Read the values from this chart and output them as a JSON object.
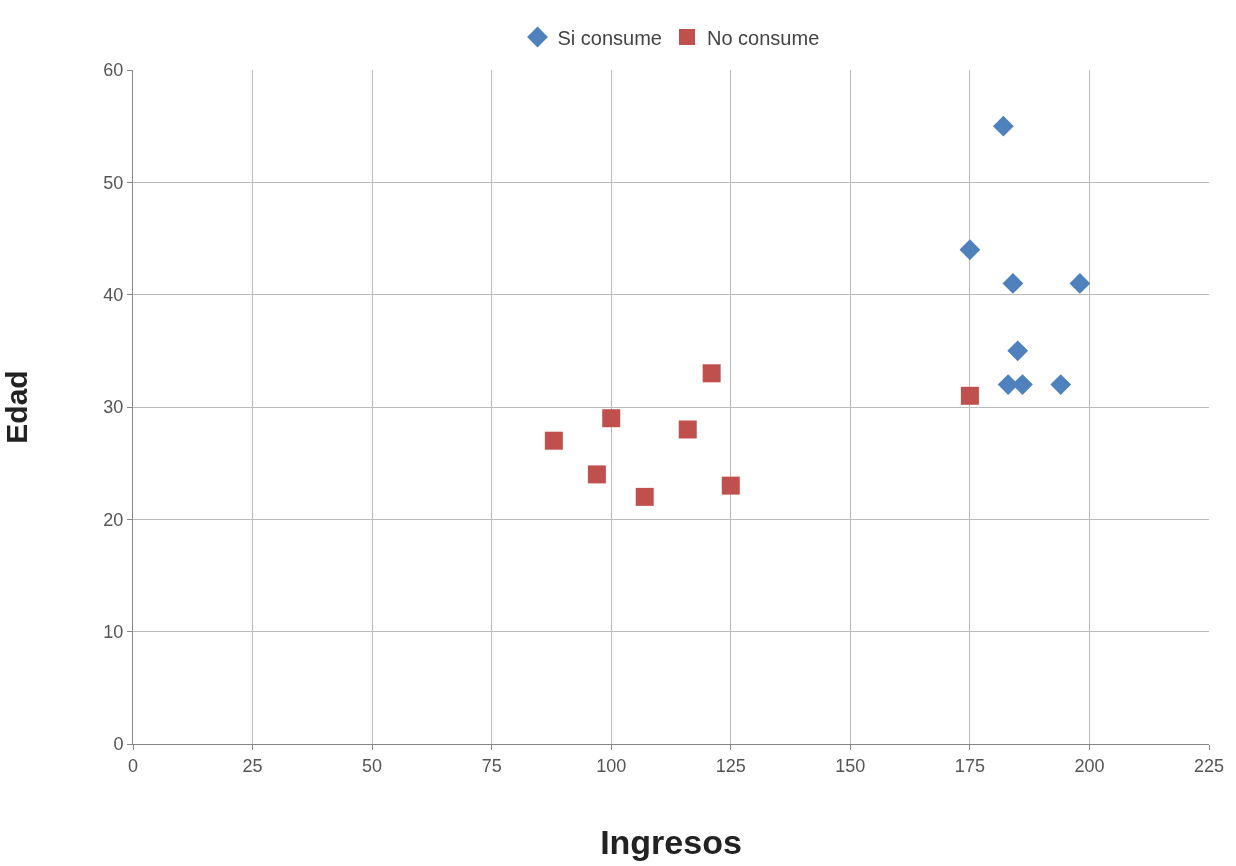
{
  "chart_data": {
    "type": "scatter",
    "xlabel": "Ingresos",
    "ylabel": "Edad",
    "xlim": [
      0,
      225
    ],
    "xticks": [
      0,
      25,
      50,
      75,
      100,
      125,
      150,
      175,
      200,
      225
    ],
    "ylim": [
      0,
      60
    ],
    "yticks": [
      0,
      10,
      20,
      30,
      40,
      50,
      60
    ],
    "grid": true,
    "legend": "top",
    "series": [
      {
        "name": "Si consume",
        "color": "#4f81bd",
        "marker": "diamond",
        "x": [
          182,
          175,
          184,
          198,
          185,
          183,
          186,
          194
        ],
        "values": [
          55,
          44,
          41,
          41,
          35,
          32,
          32,
          32
        ]
      },
      {
        "name": "No consume",
        "color": "#c0504d",
        "marker": "square",
        "x": [
          88,
          97,
          100,
          107,
          116,
          121,
          125,
          175
        ],
        "values": [
          27,
          24,
          29,
          22,
          28,
          33,
          23,
          31
        ]
      }
    ]
  }
}
